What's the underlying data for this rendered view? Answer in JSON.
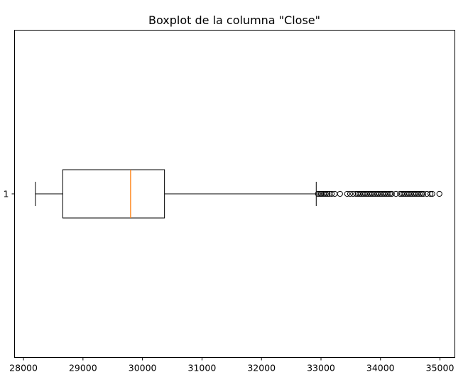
{
  "chart_data": {
    "type": "boxplot",
    "title": "Boxplot de la columna \"Close\"",
    "orientation": "horizontal",
    "xlabel": "",
    "ylabel": "",
    "xlim": [
      27850,
      35250
    ],
    "x_ticks": [
      28000,
      29000,
      30000,
      31000,
      32000,
      33000,
      34000,
      35000
    ],
    "y_ticks": [
      "1"
    ],
    "grid": false,
    "box": {
      "category": "1",
      "whisker_low": 28200,
      "q1": 28660,
      "median": 29800,
      "q3": 30370,
      "whisker_high": 32920,
      "outliers": [
        32950,
        32980,
        33000,
        33020,
        33050,
        33080,
        33110,
        33140,
        33180,
        33230,
        33320,
        33440,
        33490,
        33540,
        33590,
        33620,
        33650,
        33680,
        33710,
        33740,
        33770,
        33800,
        33830,
        33860,
        33890,
        33920,
        33950,
        33980,
        34010,
        34040,
        34070,
        34100,
        34130,
        34160,
        34190,
        34260,
        34330,
        34360,
        34390,
        34420,
        34450,
        34480,
        34510,
        34540,
        34570,
        34600,
        34630,
        34660,
        34690,
        34720,
        34780,
        34840,
        34870,
        34990
      ]
    },
    "colors": {
      "box": "#000000",
      "median": "#ff7f0e",
      "outlier_edge": "#000000"
    }
  }
}
